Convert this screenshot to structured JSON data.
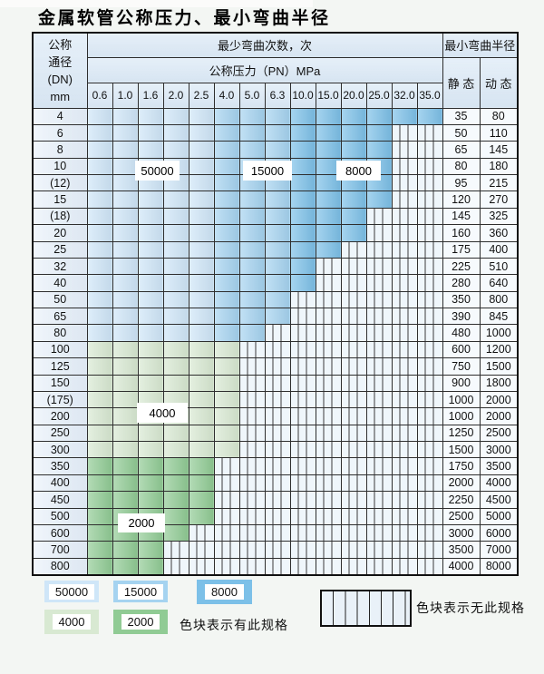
{
  "page": {
    "title": "金属软管公称压力、最小弯曲半径"
  },
  "colors": {
    "cycles_50000": "#cfe6f8",
    "cycles_15000": "#a5d3f0",
    "cycles_8000": "#7cc0e8",
    "cycles_4000": "#d8e9d2",
    "cycles_2000": "#90cb94",
    "hatch_bg": "#eff6fb",
    "header_bg": "#dbe9f6"
  },
  "table": {
    "header": {
      "dn_lines": [
        "公称",
        "通径",
        "(DN)",
        "mm"
      ],
      "bend_cycles": "最少弯曲次数，次",
      "pressure": "公称压力（PN）MPa",
      "min_radius": "最小弯曲半径",
      "static": "静 态",
      "dynamic": "动 态",
      "pressure_values": [
        "0.6",
        "1.0",
        "1.6",
        "2.0",
        "2.5",
        "4.0",
        "5.0",
        "6.3",
        "10.0",
        "15.0",
        "20.0",
        "25.0",
        "32.0",
        "35.0"
      ]
    },
    "zones": {
      "mid_from_col": 5,
      "dark_from_col": 8,
      "green_from_row": 14,
      "green_dark_from_row": 21
    },
    "rows": [
      {
        "dn": "4",
        "colored": 14,
        "static": "35",
        "dynamic": "80"
      },
      {
        "dn": "6",
        "colored": 12,
        "static": "50",
        "dynamic": "110"
      },
      {
        "dn": "8",
        "colored": 12,
        "static": "65",
        "dynamic": "145"
      },
      {
        "dn": "10",
        "colored": 12,
        "static": "80",
        "dynamic": "180"
      },
      {
        "dn": "(12)",
        "colored": 12,
        "static": "95",
        "dynamic": "215"
      },
      {
        "dn": "15",
        "colored": 12,
        "static": "120",
        "dynamic": "270"
      },
      {
        "dn": "(18)",
        "colored": 11,
        "static": "145",
        "dynamic": "325"
      },
      {
        "dn": "20",
        "colored": 11,
        "static": "160",
        "dynamic": "360"
      },
      {
        "dn": "25",
        "colored": 10,
        "static": "175",
        "dynamic": "400"
      },
      {
        "dn": "32",
        "colored": 9,
        "static": "225",
        "dynamic": "510"
      },
      {
        "dn": "40",
        "colored": 9,
        "static": "280",
        "dynamic": "640"
      },
      {
        "dn": "50",
        "colored": 8,
        "static": "350",
        "dynamic": "800"
      },
      {
        "dn": "65",
        "colored": 8,
        "static": "390",
        "dynamic": "845"
      },
      {
        "dn": "80",
        "colored": 7,
        "static": "480",
        "dynamic": "1000"
      },
      {
        "dn": "100",
        "colored": 6,
        "static": "600",
        "dynamic": "1200"
      },
      {
        "dn": "125",
        "colored": 6,
        "static": "750",
        "dynamic": "1500"
      },
      {
        "dn": "150",
        "colored": 6,
        "static": "900",
        "dynamic": "1800"
      },
      {
        "dn": "(175)",
        "colored": 6,
        "static": "1000",
        "dynamic": "2000"
      },
      {
        "dn": "200",
        "colored": 6,
        "static": "1000",
        "dynamic": "2000"
      },
      {
        "dn": "250",
        "colored": 6,
        "static": "1250",
        "dynamic": "2500"
      },
      {
        "dn": "300",
        "colored": 6,
        "static": "1500",
        "dynamic": "3000"
      },
      {
        "dn": "350",
        "colored": 5,
        "static": "1750",
        "dynamic": "3500"
      },
      {
        "dn": "400",
        "colored": 5,
        "static": "2000",
        "dynamic": "4000"
      },
      {
        "dn": "450",
        "colored": 5,
        "static": "2250",
        "dynamic": "4500"
      },
      {
        "dn": "500",
        "colored": 5,
        "static": "2500",
        "dynamic": "5000"
      },
      {
        "dn": "600",
        "colored": 4,
        "static": "3000",
        "dynamic": "6000"
      },
      {
        "dn": "700",
        "colored": 3,
        "static": "3500",
        "dynamic": "7000"
      },
      {
        "dn": "800",
        "colored": 3,
        "static": "4000",
        "dynamic": "8000"
      }
    ]
  },
  "overlays": [
    "50000",
    "15000",
    "8000",
    "4000",
    "2000"
  ],
  "legend": {
    "swatches": [
      "50000",
      "15000",
      "8000",
      "4000",
      "2000"
    ],
    "has_spec": "色块表示有此规格",
    "no_spec": "色块表示无此规格"
  }
}
